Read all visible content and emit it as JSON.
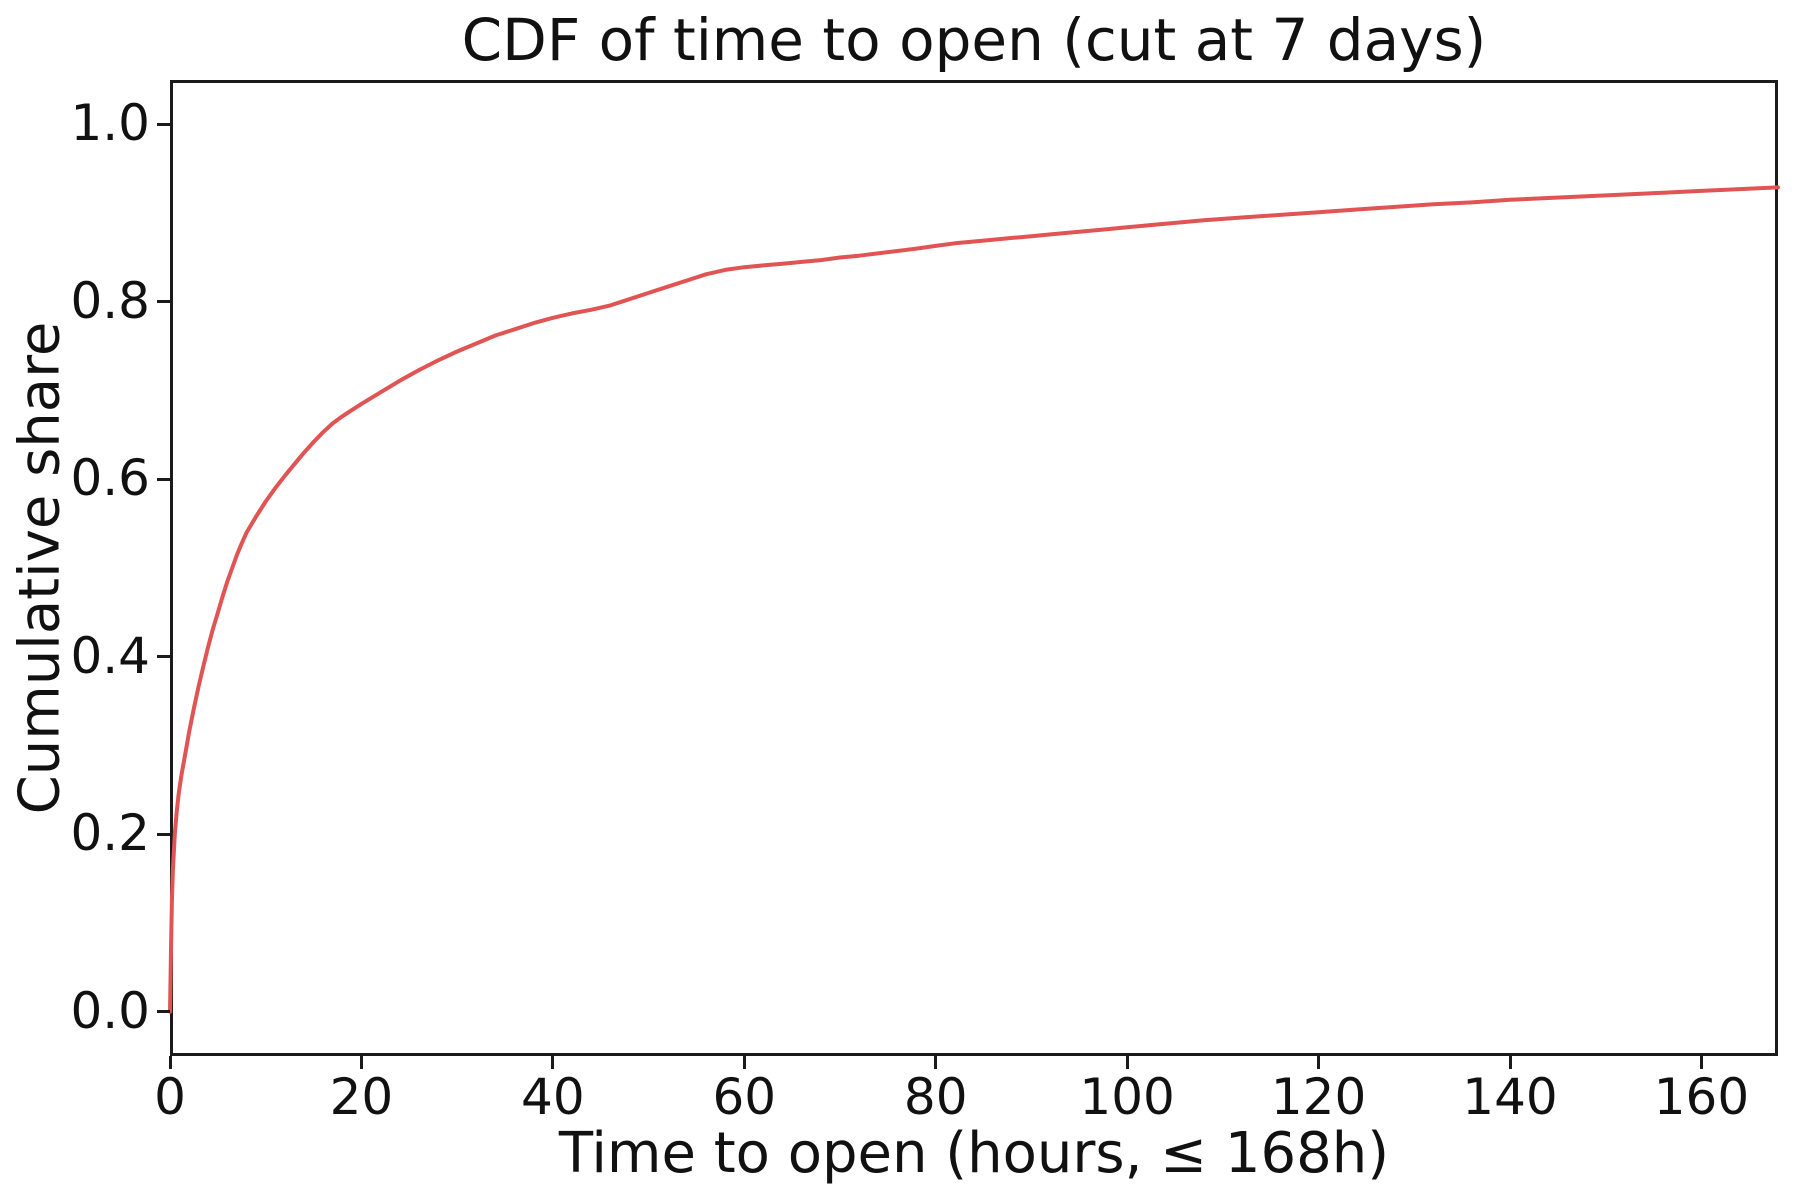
{
  "figure": {
    "background": "#ffffff",
    "text_color": "#111111",
    "spine_color": "#1b1b1b"
  },
  "chart_data": {
    "type": "line",
    "title": "CDF of time to open (cut at 7 days)",
    "xlabel": "Time to open (hours, ≤ 168h)",
    "ylabel": "Cumulative share",
    "xlim": [
      0,
      168
    ],
    "ylim": [
      -0.05,
      1.05
    ],
    "xticks": [
      0,
      20,
      40,
      60,
      80,
      100,
      120,
      140,
      160
    ],
    "yticks": [
      0.0,
      0.2,
      0.4,
      0.6,
      0.8,
      1.0
    ],
    "grid": false,
    "legend": null,
    "line_color": "#e05454",
    "line_width": 4,
    "series": [
      {
        "name": "cdf",
        "points": [
          [
            0,
            0
          ],
          [
            0.1,
            0.07
          ],
          [
            0.2,
            0.125
          ],
          [
            0.3,
            0.16
          ],
          [
            0.5,
            0.2
          ],
          [
            0.7,
            0.225
          ],
          [
            0.9,
            0.245
          ],
          [
            1.2,
            0.267
          ],
          [
            1.5,
            0.285
          ],
          [
            2,
            0.315
          ],
          [
            2.5,
            0.342
          ],
          [
            3,
            0.367
          ],
          [
            3.5,
            0.39
          ],
          [
            4,
            0.412
          ],
          [
            4.5,
            0.432
          ],
          [
            5,
            0.45
          ],
          [
            5.5,
            0.468
          ],
          [
            6,
            0.485
          ],
          [
            6.5,
            0.5
          ],
          [
            7,
            0.515
          ],
          [
            7.5,
            0.528
          ],
          [
            8,
            0.54
          ],
          [
            9,
            0.558
          ],
          [
            10,
            0.575
          ],
          [
            11,
            0.59
          ],
          [
            12,
            0.604
          ],
          [
            13,
            0.617
          ],
          [
            14,
            0.63
          ],
          [
            15,
            0.642
          ],
          [
            16,
            0.653
          ],
          [
            17,
            0.663
          ],
          [
            18,
            0.671
          ],
          [
            19,
            0.678
          ],
          [
            20,
            0.685
          ],
          [
            22,
            0.698
          ],
          [
            24,
            0.711
          ],
          [
            26,
            0.723
          ],
          [
            28,
            0.734
          ],
          [
            30,
            0.744
          ],
          [
            32,
            0.753
          ],
          [
            34,
            0.762
          ],
          [
            36,
            0.769
          ],
          [
            38,
            0.776
          ],
          [
            40,
            0.782
          ],
          [
            42,
            0.787
          ],
          [
            44,
            0.791
          ],
          [
            46,
            0.796
          ],
          [
            48,
            0.803
          ],
          [
            50,
            0.81
          ],
          [
            52,
            0.817
          ],
          [
            54,
            0.824
          ],
          [
            56,
            0.831
          ],
          [
            58,
            0.836
          ],
          [
            60,
            0.839
          ],
          [
            62,
            0.841
          ],
          [
            64,
            0.843
          ],
          [
            66,
            0.845
          ],
          [
            68,
            0.847
          ],
          [
            70,
            0.85
          ],
          [
            72,
            0.852
          ],
          [
            75,
            0.856
          ],
          [
            78,
            0.86
          ],
          [
            80,
            0.863
          ],
          [
            82,
            0.866
          ],
          [
            85,
            0.869
          ],
          [
            88,
            0.872
          ],
          [
            90,
            0.874
          ],
          [
            92,
            0.876
          ],
          [
            95,
            0.879
          ],
          [
            98,
            0.882
          ],
          [
            100,
            0.884
          ],
          [
            104,
            0.888
          ],
          [
            108,
            0.892
          ],
          [
            112,
            0.895
          ],
          [
            116,
            0.898
          ],
          [
            120,
            0.901
          ],
          [
            124,
            0.904
          ],
          [
            128,
            0.907
          ],
          [
            132,
            0.91
          ],
          [
            136,
            0.912
          ],
          [
            140,
            0.915
          ],
          [
            144,
            0.917
          ],
          [
            148,
            0.919
          ],
          [
            152,
            0.921
          ],
          [
            156,
            0.923
          ],
          [
            160,
            0.925
          ],
          [
            164,
            0.927
          ],
          [
            168,
            0.929
          ]
        ]
      }
    ]
  }
}
